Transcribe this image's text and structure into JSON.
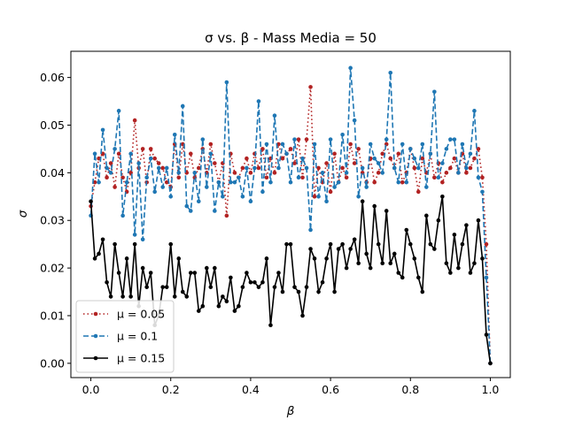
{
  "chart_data": {
    "type": "line",
    "title": "σ vs. β - Mass Media = 50",
    "xlabel": "β",
    "ylabel": "σ",
    "xlim": [
      -0.05,
      1.05
    ],
    "ylim": [
      -0.003,
      0.0655
    ],
    "x_ticks": [
      0.0,
      0.2,
      0.4,
      0.6,
      0.8,
      1.0
    ],
    "x_tick_labels": [
      "0.0",
      "0.2",
      "0.4",
      "0.6",
      "0.8",
      "1.0"
    ],
    "y_ticks": [
      0.0,
      0.01,
      0.02,
      0.03,
      0.04,
      0.05,
      0.06
    ],
    "y_tick_labels": [
      "0.00",
      "0.01",
      "0.02",
      "0.03",
      "0.04",
      "0.05",
      "0.06"
    ],
    "grid": false,
    "legend_position": "lower-left",
    "series": [
      {
        "name": "μ = 0.05",
        "color": "#b22222",
        "linestyle": "dotted",
        "x": [
          0.0,
          0.01,
          0.02,
          0.03,
          0.04,
          0.05,
          0.06,
          0.07,
          0.08,
          0.09,
          0.1,
          0.11,
          0.12,
          0.13,
          0.14,
          0.15,
          0.16,
          0.17,
          0.18,
          0.19,
          0.2,
          0.21,
          0.22,
          0.23,
          0.24,
          0.25,
          0.26,
          0.27,
          0.28,
          0.29,
          0.3,
          0.31,
          0.32,
          0.33,
          0.34,
          0.35,
          0.36,
          0.37,
          0.38,
          0.39,
          0.4,
          0.41,
          0.42,
          0.43,
          0.44,
          0.45,
          0.46,
          0.47,
          0.48,
          0.49,
          0.5,
          0.51,
          0.52,
          0.53,
          0.54,
          0.55,
          0.56,
          0.57,
          0.58,
          0.59,
          0.6,
          0.61,
          0.62,
          0.63,
          0.64,
          0.65,
          0.66,
          0.67,
          0.68,
          0.69,
          0.7,
          0.71,
          0.72,
          0.73,
          0.74,
          0.75,
          0.76,
          0.77,
          0.78,
          0.79,
          0.8,
          0.81,
          0.82,
          0.83,
          0.84,
          0.85,
          0.86,
          0.87,
          0.88,
          0.89,
          0.9,
          0.91,
          0.92,
          0.93,
          0.94,
          0.95,
          0.96,
          0.97,
          0.98,
          0.99,
          1.0
        ],
        "values": [
          0.033,
          0.038,
          0.043,
          0.044,
          0.039,
          0.042,
          0.037,
          0.044,
          0.039,
          0.036,
          0.04,
          0.051,
          0.041,
          0.045,
          0.038,
          0.045,
          0.043,
          0.042,
          0.041,
          0.038,
          0.037,
          0.046,
          0.039,
          0.046,
          0.04,
          0.044,
          0.039,
          0.041,
          0.045,
          0.04,
          0.046,
          0.042,
          0.038,
          0.042,
          0.031,
          0.044,
          0.04,
          0.039,
          0.041,
          0.043,
          0.04,
          0.044,
          0.041,
          0.045,
          0.039,
          0.043,
          0.04,
          0.046,
          0.043,
          0.044,
          0.045,
          0.042,
          0.047,
          0.039,
          0.047,
          0.058,
          0.035,
          0.041,
          0.038,
          0.042,
          0.036,
          0.044,
          0.038,
          0.041,
          0.039,
          0.046,
          0.042,
          0.045,
          0.04,
          0.038,
          0.043,
          0.038,
          0.04,
          0.044,
          0.046,
          0.043,
          0.041,
          0.044,
          0.038,
          0.04,
          0.045,
          0.041,
          0.036,
          0.043,
          0.04,
          0.044,
          0.039,
          0.042,
          0.038,
          0.04,
          0.041,
          0.043,
          0.04,
          0.044,
          0.04,
          0.041,
          0.043,
          0.045,
          0.039,
          0.025,
          0.0
        ]
      },
      {
        "name": "μ = 0.1",
        "color": "#1f77b4",
        "linestyle": "dashed",
        "x": [
          0.0,
          0.01,
          0.02,
          0.03,
          0.04,
          0.05,
          0.06,
          0.07,
          0.08,
          0.09,
          0.1,
          0.11,
          0.12,
          0.13,
          0.14,
          0.15,
          0.16,
          0.17,
          0.18,
          0.19,
          0.2,
          0.21,
          0.22,
          0.23,
          0.24,
          0.25,
          0.26,
          0.27,
          0.28,
          0.29,
          0.3,
          0.31,
          0.32,
          0.33,
          0.34,
          0.35,
          0.36,
          0.37,
          0.38,
          0.39,
          0.4,
          0.41,
          0.42,
          0.43,
          0.44,
          0.45,
          0.46,
          0.47,
          0.48,
          0.49,
          0.5,
          0.51,
          0.52,
          0.53,
          0.54,
          0.55,
          0.56,
          0.57,
          0.58,
          0.59,
          0.6,
          0.61,
          0.62,
          0.63,
          0.64,
          0.65,
          0.66,
          0.67,
          0.68,
          0.69,
          0.7,
          0.71,
          0.72,
          0.73,
          0.74,
          0.75,
          0.76,
          0.77,
          0.78,
          0.79,
          0.8,
          0.81,
          0.82,
          0.83,
          0.84,
          0.85,
          0.86,
          0.87,
          0.88,
          0.89,
          0.9,
          0.91,
          0.92,
          0.93,
          0.94,
          0.95,
          0.96,
          0.97,
          0.98,
          0.99,
          1.0
        ],
        "values": [
          0.031,
          0.044,
          0.038,
          0.049,
          0.041,
          0.04,
          0.045,
          0.053,
          0.031,
          0.038,
          0.044,
          0.027,
          0.042,
          0.026,
          0.039,
          0.043,
          0.036,
          0.041,
          0.037,
          0.041,
          0.035,
          0.048,
          0.04,
          0.054,
          0.033,
          0.032,
          0.04,
          0.034,
          0.047,
          0.037,
          0.044,
          0.032,
          0.038,
          0.035,
          0.059,
          0.038,
          0.038,
          0.039,
          0.035,
          0.041,
          0.034,
          0.041,
          0.055,
          0.036,
          0.046,
          0.038,
          0.052,
          0.041,
          0.046,
          0.044,
          0.038,
          0.047,
          0.039,
          0.043,
          0.041,
          0.028,
          0.046,
          0.035,
          0.04,
          0.034,
          0.047,
          0.037,
          0.038,
          0.048,
          0.04,
          0.062,
          0.051,
          0.035,
          0.041,
          0.037,
          0.046,
          0.043,
          0.042,
          0.04,
          0.047,
          0.061,
          0.041,
          0.038,
          0.046,
          0.038,
          0.045,
          0.043,
          0.041,
          0.046,
          0.037,
          0.044,
          0.057,
          0.039,
          0.042,
          0.045,
          0.047,
          0.047,
          0.04,
          0.046,
          0.041,
          0.044,
          0.053,
          0.039,
          0.036,
          0.018,
          0.0
        ]
      },
      {
        "name": "μ = 0.15",
        "color": "#000000",
        "linestyle": "solid",
        "x": [
          0.0,
          0.01,
          0.02,
          0.03,
          0.04,
          0.05,
          0.06,
          0.07,
          0.08,
          0.09,
          0.1,
          0.11,
          0.12,
          0.13,
          0.14,
          0.15,
          0.16,
          0.17,
          0.18,
          0.19,
          0.2,
          0.21,
          0.22,
          0.23,
          0.24,
          0.25,
          0.26,
          0.27,
          0.28,
          0.29,
          0.3,
          0.31,
          0.32,
          0.33,
          0.34,
          0.35,
          0.36,
          0.37,
          0.38,
          0.39,
          0.4,
          0.41,
          0.42,
          0.43,
          0.44,
          0.45,
          0.46,
          0.47,
          0.48,
          0.49,
          0.5,
          0.51,
          0.52,
          0.53,
          0.54,
          0.55,
          0.56,
          0.57,
          0.58,
          0.59,
          0.6,
          0.61,
          0.62,
          0.63,
          0.64,
          0.65,
          0.66,
          0.67,
          0.68,
          0.69,
          0.7,
          0.71,
          0.72,
          0.73,
          0.74,
          0.75,
          0.76,
          0.77,
          0.78,
          0.79,
          0.8,
          0.81,
          0.82,
          0.83,
          0.84,
          0.85,
          0.86,
          0.87,
          0.88,
          0.89,
          0.9,
          0.91,
          0.92,
          0.93,
          0.94,
          0.95,
          0.96,
          0.97,
          0.98,
          0.99,
          1.0
        ],
        "values": [
          0.034,
          0.022,
          0.023,
          0.026,
          0.017,
          0.014,
          0.025,
          0.019,
          0.014,
          0.022,
          0.014,
          0.025,
          0.012,
          0.02,
          0.016,
          0.019,
          0.008,
          0.01,
          0.016,
          0.016,
          0.025,
          0.014,
          0.022,
          0.015,
          0.014,
          0.019,
          0.019,
          0.011,
          0.012,
          0.02,
          0.016,
          0.02,
          0.012,
          0.014,
          0.013,
          0.018,
          0.011,
          0.012,
          0.016,
          0.019,
          0.017,
          0.017,
          0.016,
          0.017,
          0.022,
          0.008,
          0.016,
          0.019,
          0.015,
          0.025,
          0.025,
          0.016,
          0.015,
          0.01,
          0.016,
          0.024,
          0.022,
          0.015,
          0.017,
          0.022,
          0.025,
          0.015,
          0.024,
          0.025,
          0.02,
          0.024,
          0.026,
          0.021,
          0.034,
          0.023,
          0.02,
          0.033,
          0.025,
          0.021,
          0.032,
          0.021,
          0.023,
          0.019,
          0.018,
          0.028,
          0.025,
          0.022,
          0.018,
          0.015,
          0.031,
          0.025,
          0.024,
          0.03,
          0.035,
          0.021,
          0.019,
          0.027,
          0.02,
          0.025,
          0.029,
          0.019,
          0.021,
          0.03,
          0.022,
          0.006,
          0.0
        ]
      }
    ]
  }
}
